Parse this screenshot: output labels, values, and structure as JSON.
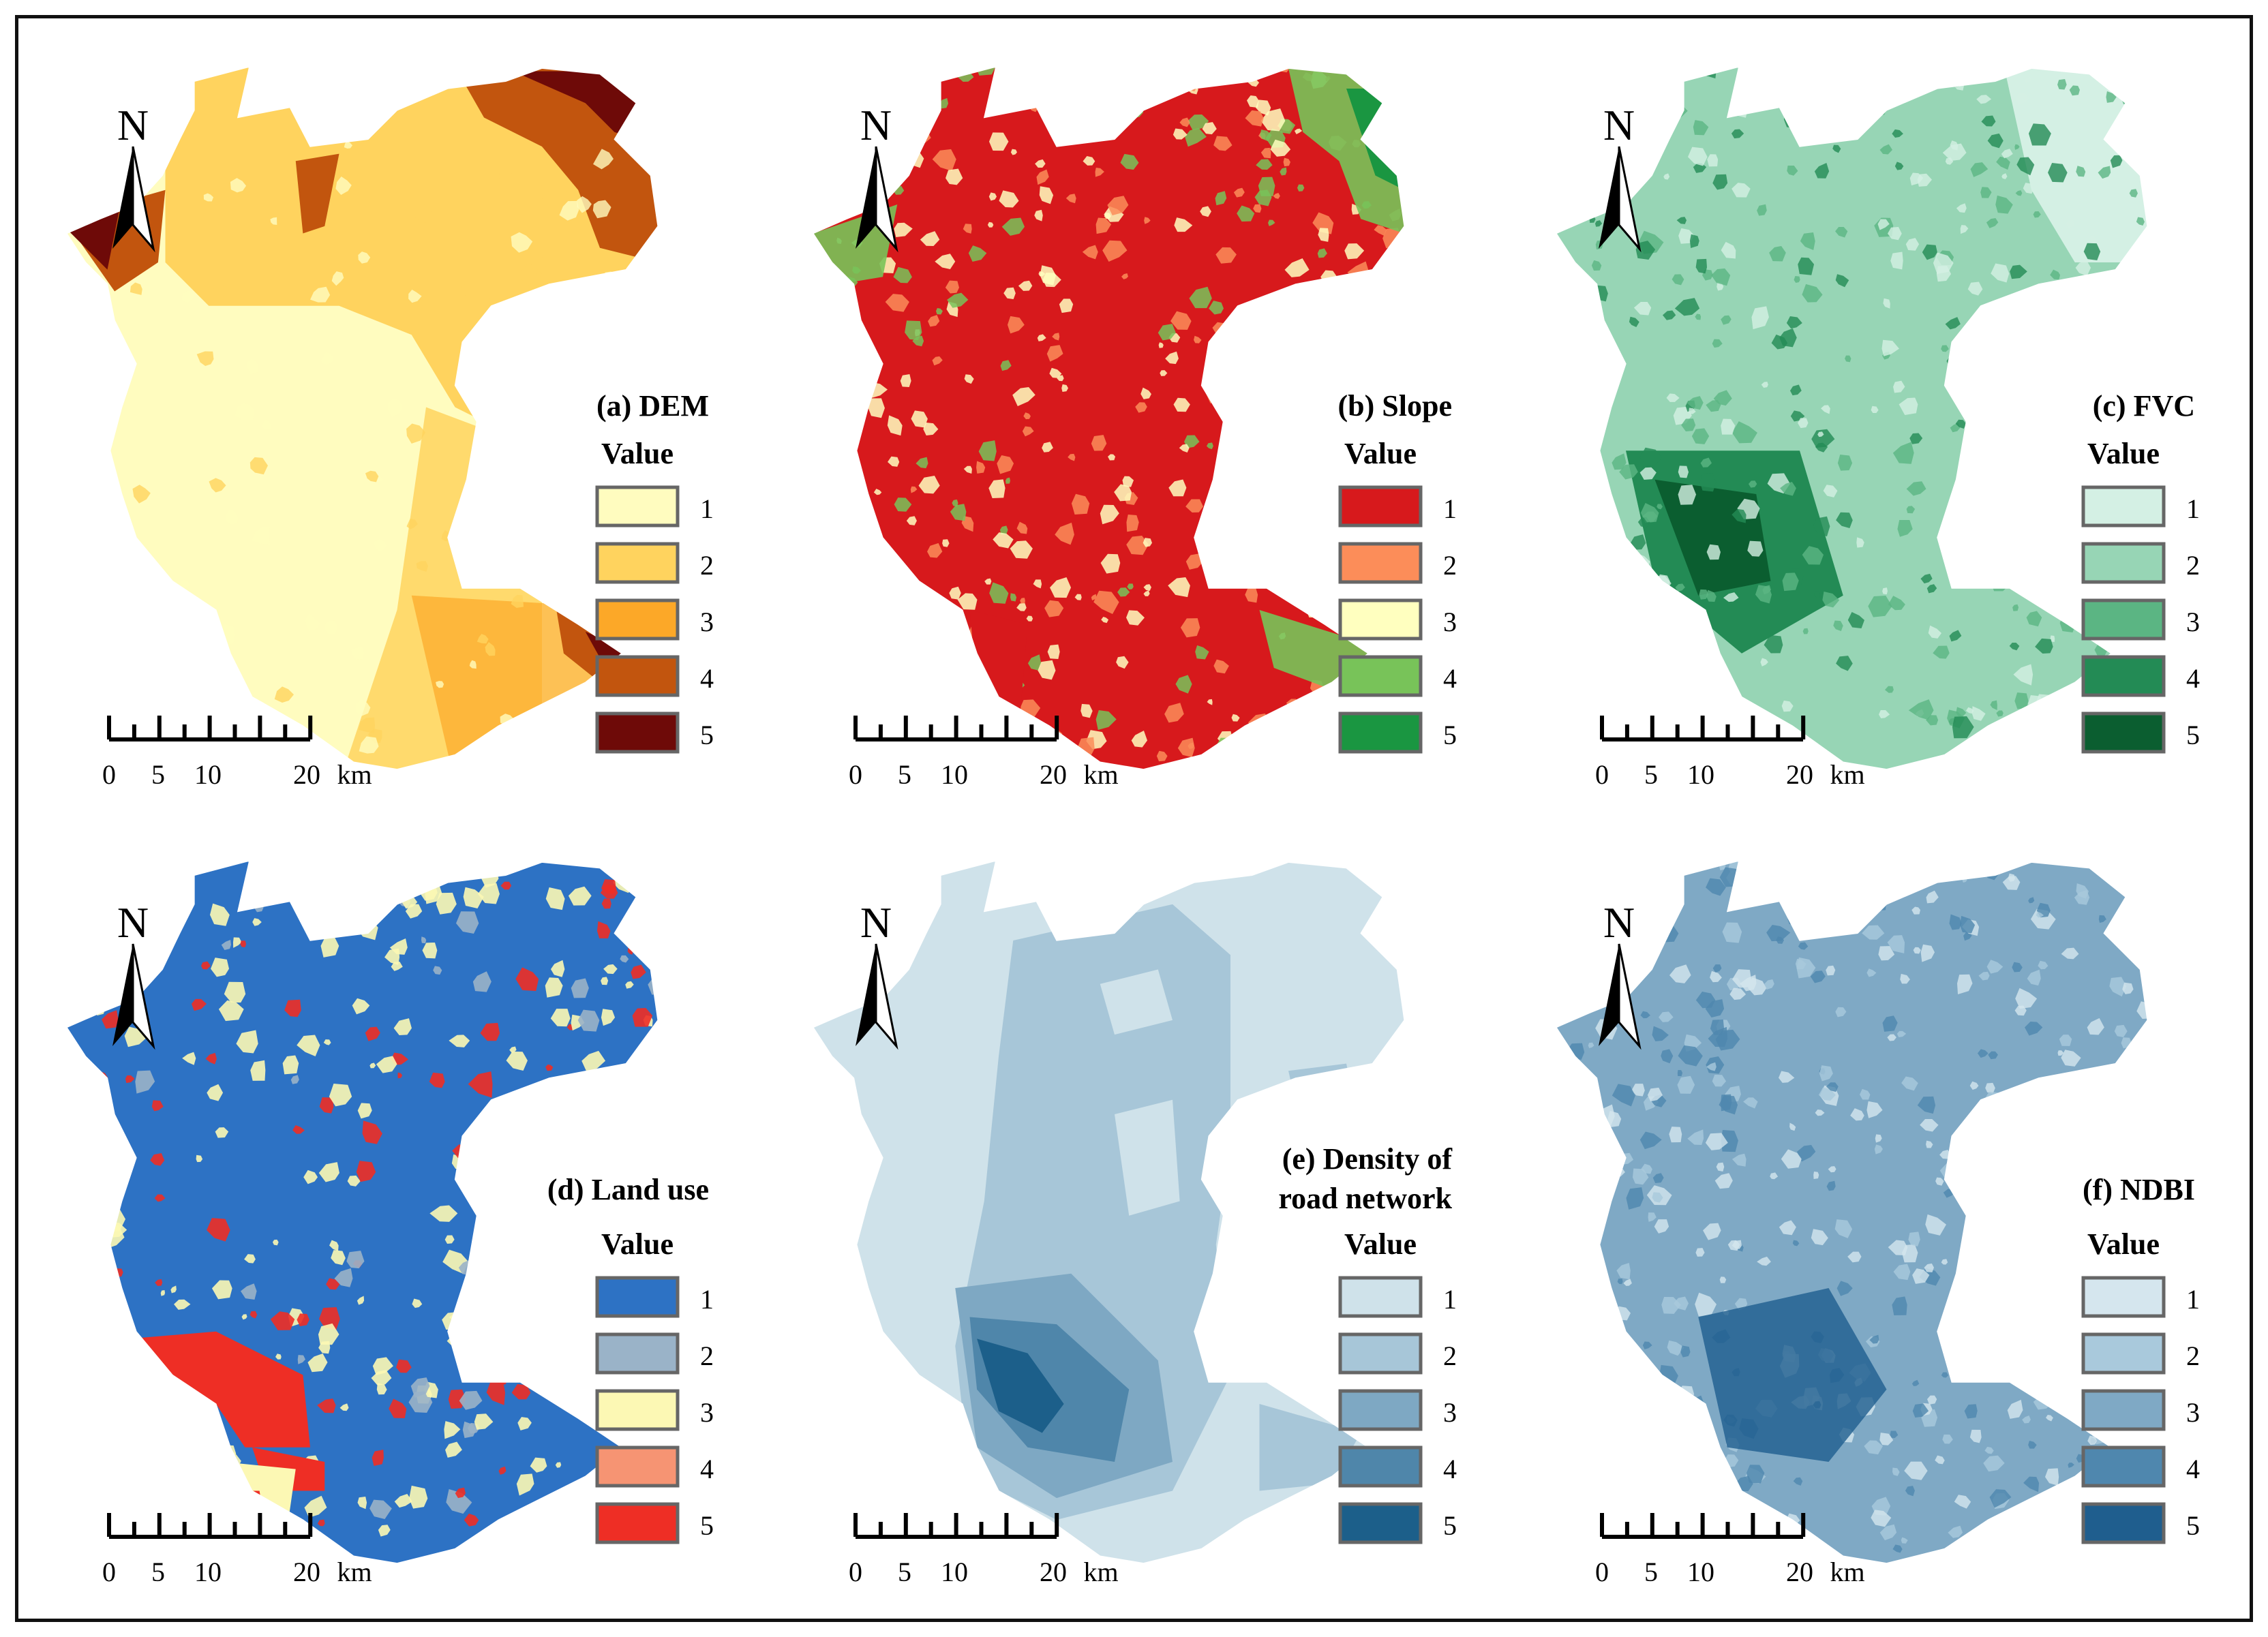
{
  "panels": [
    {
      "id": "a",
      "title": "(a) DEM",
      "title_lines": [
        "(a) DEM"
      ],
      "legend_heading": "Value",
      "classes": [
        "1",
        "2",
        "3",
        "4",
        "5"
      ],
      "colors": [
        "#fffcbf",
        "#ffd35e",
        "#fca828",
        "#c2550e",
        "#6e0a08"
      ],
      "scale_labels": [
        "0",
        "5",
        "10",
        "20",
        "km"
      ]
    },
    {
      "id": "b",
      "title": "(b) Slope",
      "title_lines": [
        "(b) Slope"
      ],
      "legend_heading": "Value",
      "classes": [
        "1",
        "2",
        "3",
        "4",
        "5"
      ],
      "colors": [
        "#d7191c",
        "#fc8d59",
        "#ffffbf",
        "#78c359",
        "#1a9641"
      ],
      "scale_labels": [
        "0",
        "5",
        "10",
        "20",
        "km"
      ]
    },
    {
      "id": "c",
      "title": "(c) FVC",
      "title_lines": [
        "(c) FVC"
      ],
      "legend_heading": "Value",
      "classes": [
        "1",
        "2",
        "3",
        "4",
        "5"
      ],
      "colors": [
        "#d4f0e4",
        "#97d5b5",
        "#5bb583",
        "#238b55",
        "#0b5e30"
      ],
      "scale_labels": [
        "0",
        "5",
        "10",
        "20",
        "km"
      ]
    },
    {
      "id": "d",
      "title": "(d) Land use",
      "title_lines": [
        "(d) Land use"
      ],
      "legend_heading": "Value",
      "classes": [
        "1",
        "2",
        "3",
        "4",
        "5"
      ],
      "colors": [
        "#2d72c4",
        "#9ab3c8",
        "#fcf8b4",
        "#f69473",
        "#ee2e25"
      ],
      "scale_labels": [
        "0",
        "5",
        "10",
        "20",
        "km"
      ]
    },
    {
      "id": "e",
      "title": "(e) Density of road network",
      "title_lines": [
        "(e) Density of",
        "road network"
      ],
      "legend_heading": "Value",
      "classes": [
        "1",
        "2",
        "3",
        "4",
        "5"
      ],
      "colors": [
        "#cfe2ea",
        "#a7c6d8",
        "#7ea8c3",
        "#4f86aa",
        "#1c5f8a"
      ],
      "scale_labels": [
        "0",
        "5",
        "10",
        "20",
        "km"
      ]
    },
    {
      "id": "f",
      "title": "(f) NDBI",
      "title_lines": [
        "(f) NDBI"
      ],
      "legend_heading": "Value",
      "classes": [
        "1",
        "2",
        "3",
        "4",
        "5"
      ],
      "colors": [
        "#d5e6ee",
        "#a9c9dc",
        "#7fa9c5",
        "#4f87ae",
        "#1f5e8e"
      ],
      "scale_labels": [
        "0",
        "5",
        "10",
        "20",
        "km"
      ]
    }
  ],
  "north_label": "N",
  "frame_color": "#111111"
}
